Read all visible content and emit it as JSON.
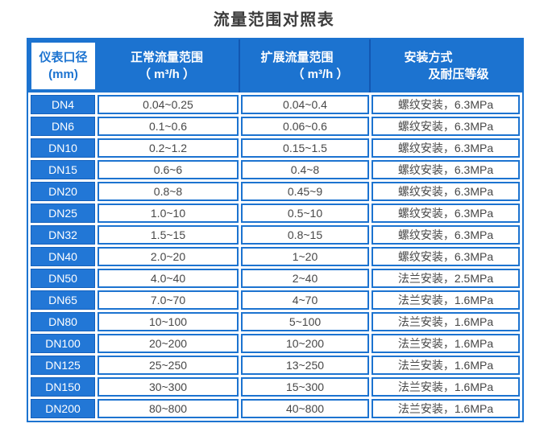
{
  "title": "流量范围对照表",
  "colors": {
    "header_blue": "#1C73D0",
    "row_label_blue": "#2277D6",
    "border_blue": "#1C73D0",
    "dark_border_blue": "#1360BC",
    "header_separator_blue": "#1257B2",
    "text_dark": "#474747",
    "text_white": "#FFFFFF",
    "title_text": "#3C3C3C"
  },
  "table": {
    "header": {
      "diameter": {
        "line1": "仪表口径",
        "line2": "(mm)"
      },
      "normal": {
        "line1": "正常流量范围",
        "line2": "（ m³/h ）"
      },
      "extended": {
        "line1": "扩展流量范围",
        "line2": "（ m³/h ）"
      },
      "install": {
        "line1": "安装方式",
        "line2": "及耐压等级"
      }
    },
    "rows": [
      {
        "dn": "DN4",
        "normal": "0.04~0.25",
        "extended": "0.04~0.4",
        "install": "螺纹安装，6.3MPa"
      },
      {
        "dn": "DN6",
        "normal": "0.1~0.6",
        "extended": "0.06~0.6",
        "install": "螺纹安装，6.3MPa"
      },
      {
        "dn": "DN10",
        "normal": "0.2~1.2",
        "extended": "0.15~1.5",
        "install": "螺纹安装，6.3MPa"
      },
      {
        "dn": "DN15",
        "normal": "0.6~6",
        "extended": "0.4~8",
        "install": "螺纹安装，6.3MPa"
      },
      {
        "dn": "DN20",
        "normal": "0.8~8",
        "extended": "0.45~9",
        "install": "螺纹安装，6.3MPa"
      },
      {
        "dn": "DN25",
        "normal": "1.0~10",
        "extended": "0.5~10",
        "install": "螺纹安装，6.3MPa"
      },
      {
        "dn": "DN32",
        "normal": "1.5~15",
        "extended": "0.8~15",
        "install": "螺纹安装，6.3MPa"
      },
      {
        "dn": "DN40",
        "normal": "2.0~20",
        "extended": "1~20",
        "install": "螺纹安装，6.3MPa"
      },
      {
        "dn": "DN50",
        "normal": "4.0~40",
        "extended": "2~40",
        "install": "法兰安装，2.5MPa"
      },
      {
        "dn": "DN65",
        "normal": "7.0~70",
        "extended": "4~70",
        "install": "法兰安装，1.6MPa"
      },
      {
        "dn": "DN80",
        "normal": "10~100",
        "extended": "5~100",
        "install": "法兰安装，1.6MPa"
      },
      {
        "dn": "DN100",
        "normal": "20~200",
        "extended": "10~200",
        "install": "法兰安装，1.6MPa"
      },
      {
        "dn": "DN125",
        "normal": "25~250",
        "extended": "13~250",
        "install": "法兰安装，1.6MPa"
      },
      {
        "dn": "DN150",
        "normal": "30~300",
        "extended": "15~300",
        "install": "法兰安装，1.6MPa"
      },
      {
        "dn": "DN200",
        "normal": "80~800",
        "extended": "40~800",
        "install": "法兰安装，1.6MPa"
      }
    ]
  }
}
